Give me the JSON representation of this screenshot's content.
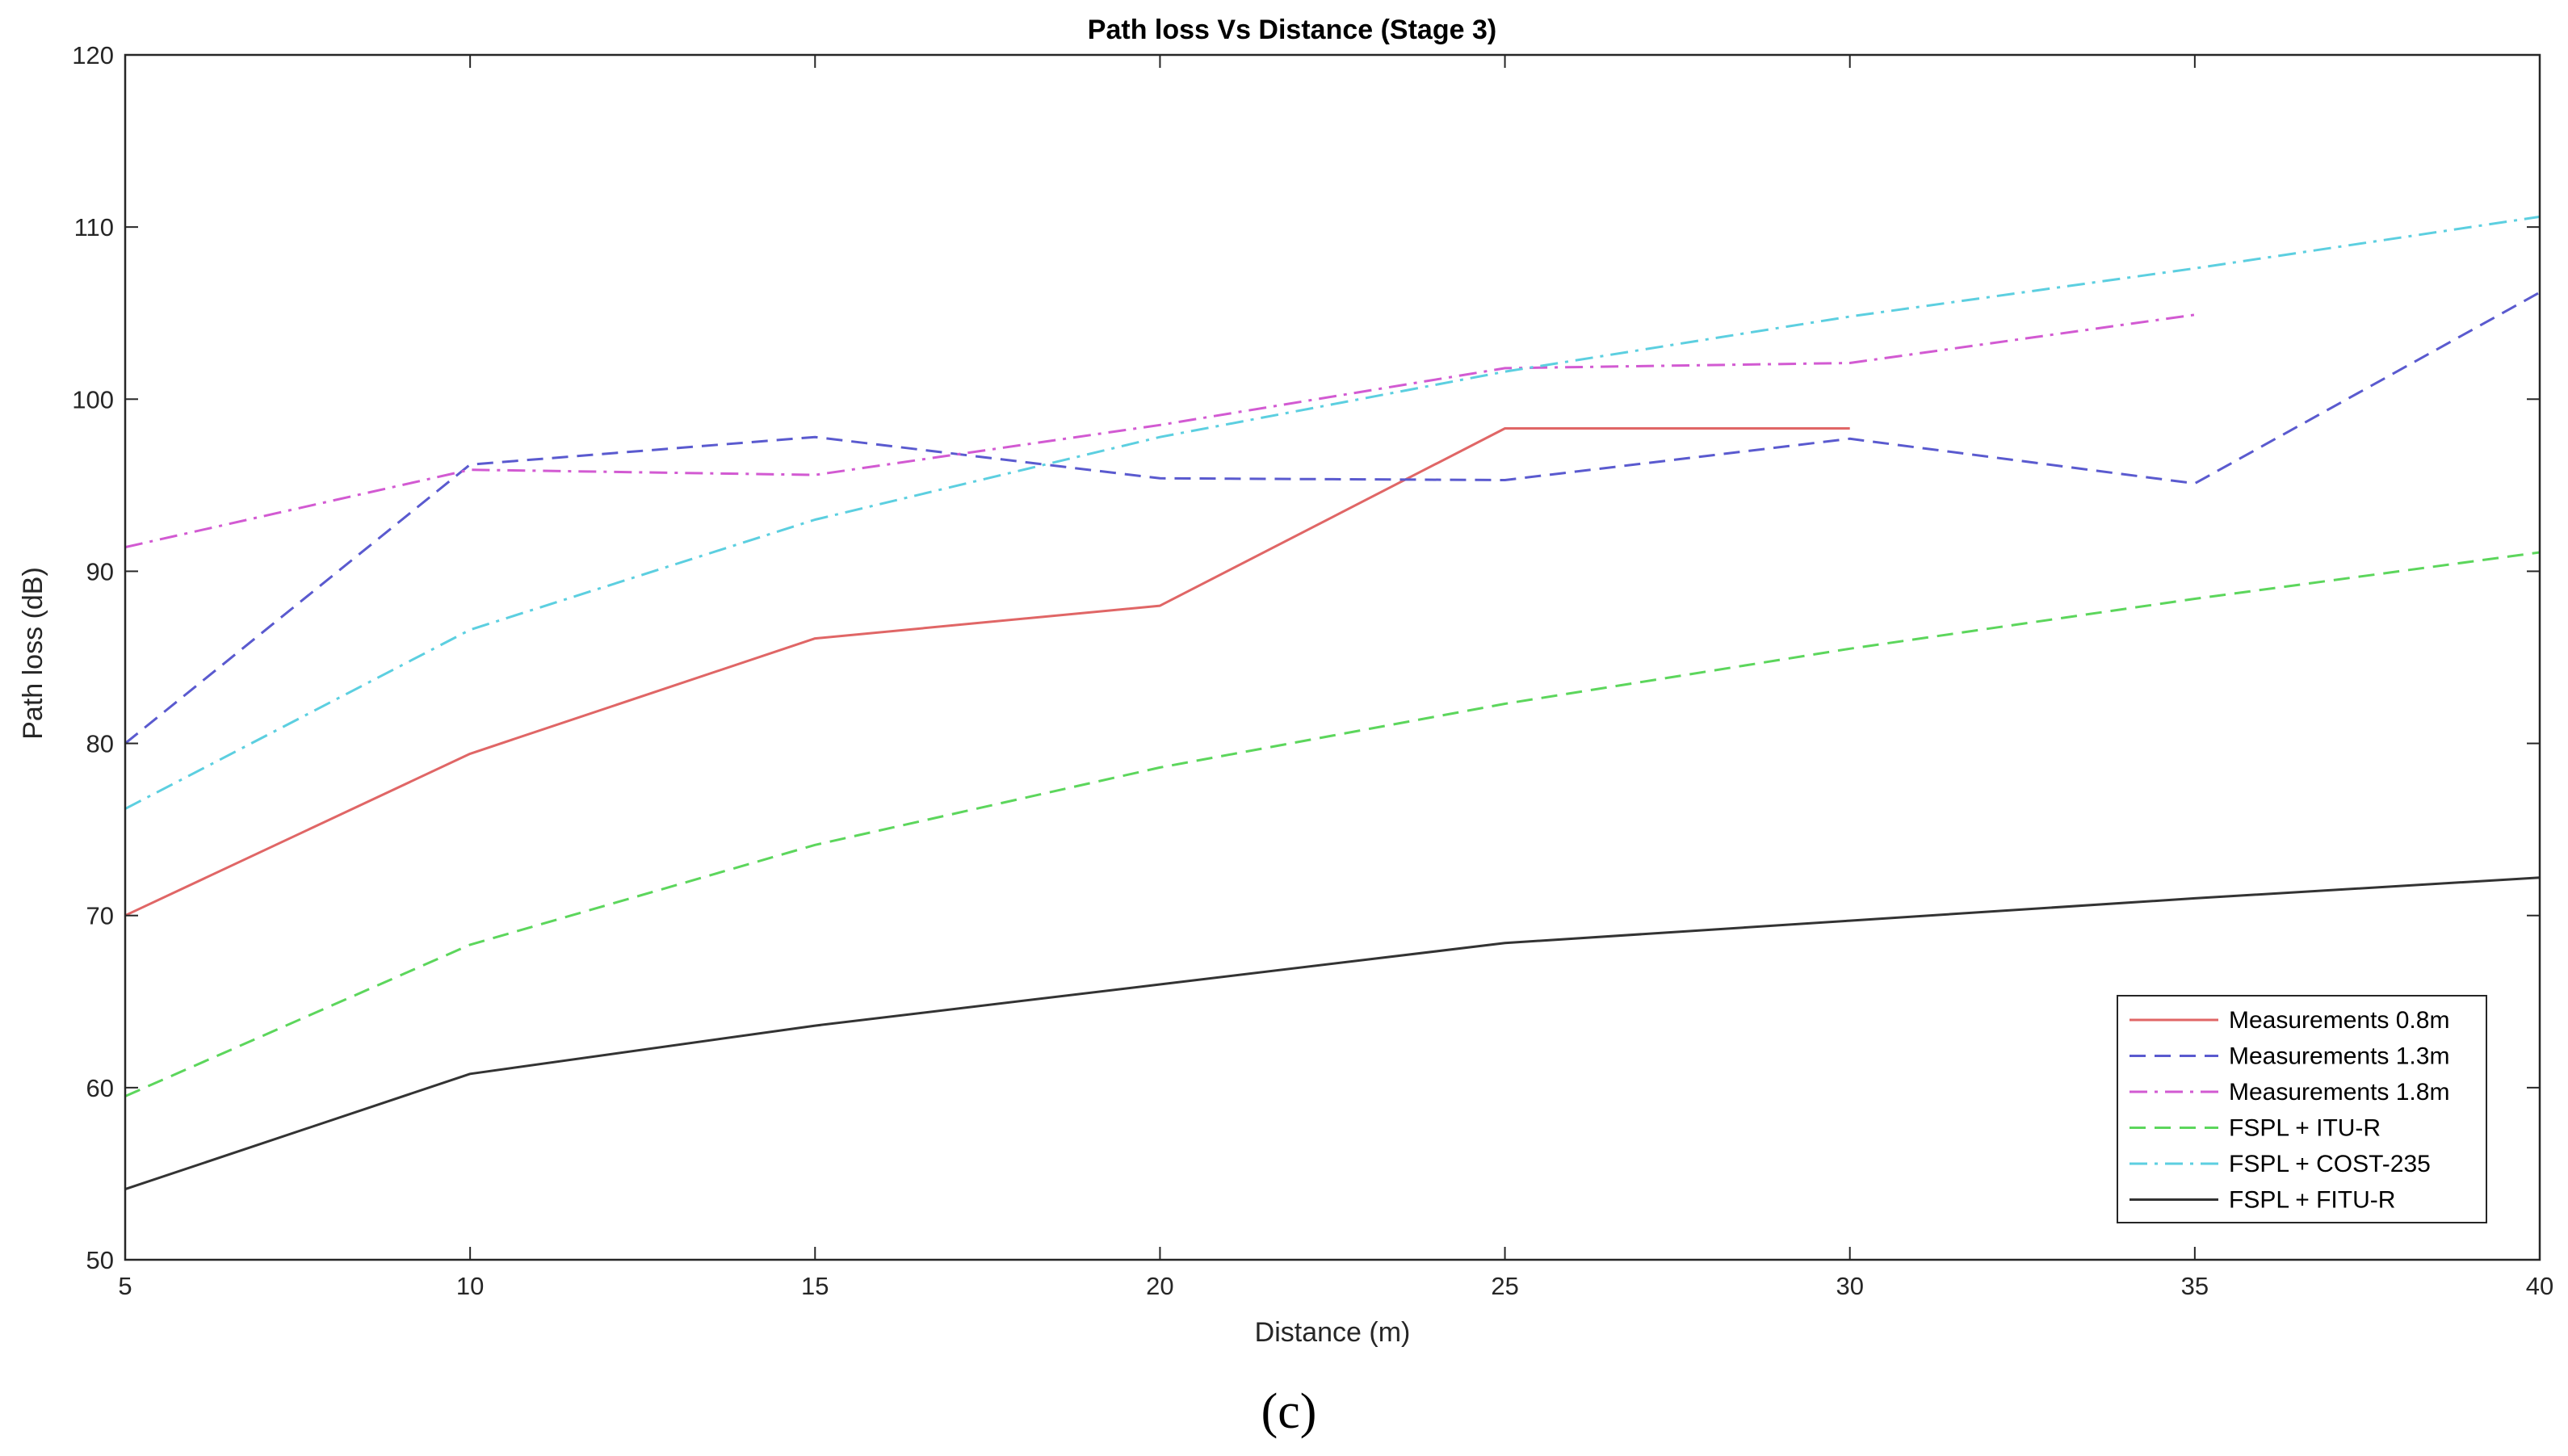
{
  "chart_data": {
    "type": "line",
    "title": "Path loss Vs Distance (Stage 3)",
    "xlabel": "Distance (m)",
    "ylabel": "Path loss (dB)",
    "xlim": [
      5,
      40
    ],
    "ylim": [
      50,
      120
    ],
    "xticks": [
      5,
      10,
      15,
      20,
      25,
      30,
      35,
      40
    ],
    "yticks": [
      50,
      60,
      70,
      80,
      90,
      100,
      110,
      120
    ],
    "grid": false,
    "legend_position": "bottom-right",
    "series": [
      {
        "name": "Measurements 0.8m",
        "color": "#e06666",
        "dash": "solid",
        "x": [
          5,
          10,
          15,
          20,
          25,
          30
        ],
        "y": [
          70,
          79.4,
          86.1,
          88.0,
          98.3,
          98.3
        ]
      },
      {
        "name": "Measurements 1.3m",
        "color": "#5a5acf",
        "dash": "dashed",
        "x": [
          5,
          10,
          15,
          20,
          25,
          30,
          35,
          40
        ],
        "y": [
          80,
          96.2,
          97.8,
          95.4,
          95.3,
          97.7,
          95.1,
          106.2
        ]
      },
      {
        "name": "Measurements 1.8m",
        "color": "#d25ad2",
        "dash": "dashdot",
        "x": [
          5,
          10,
          15,
          20,
          25,
          30,
          35
        ],
        "y": [
          91.4,
          95.9,
          95.6,
          98.5,
          101.8,
          102.1,
          104.9
        ]
      },
      {
        "name": "FSPL + ITU-R",
        "color": "#5cd65c",
        "dash": "dashed",
        "x": [
          5,
          10,
          15,
          20,
          25,
          30,
          35,
          40
        ],
        "y": [
          59.5,
          68.3,
          74.1,
          78.6,
          82.3,
          85.5,
          88.4,
          91.1
        ]
      },
      {
        "name": "FSPL + COST-235",
        "color": "#5ccfe0",
        "dash": "dashdot",
        "x": [
          5,
          10,
          15,
          20,
          25,
          30,
          35,
          40
        ],
        "y": [
          76.2,
          86.6,
          93.0,
          97.8,
          101.6,
          104.8,
          107.6,
          110.6
        ]
      },
      {
        "name": "FSPL + FITU-R",
        "color": "#333333",
        "dash": "solid",
        "x": [
          5,
          10,
          15,
          20,
          25,
          30,
          35,
          40
        ],
        "y": [
          54.1,
          60.8,
          63.6,
          66.0,
          68.4,
          69.7,
          71.0,
          72.2
        ]
      }
    ]
  },
  "caption": "(c)"
}
